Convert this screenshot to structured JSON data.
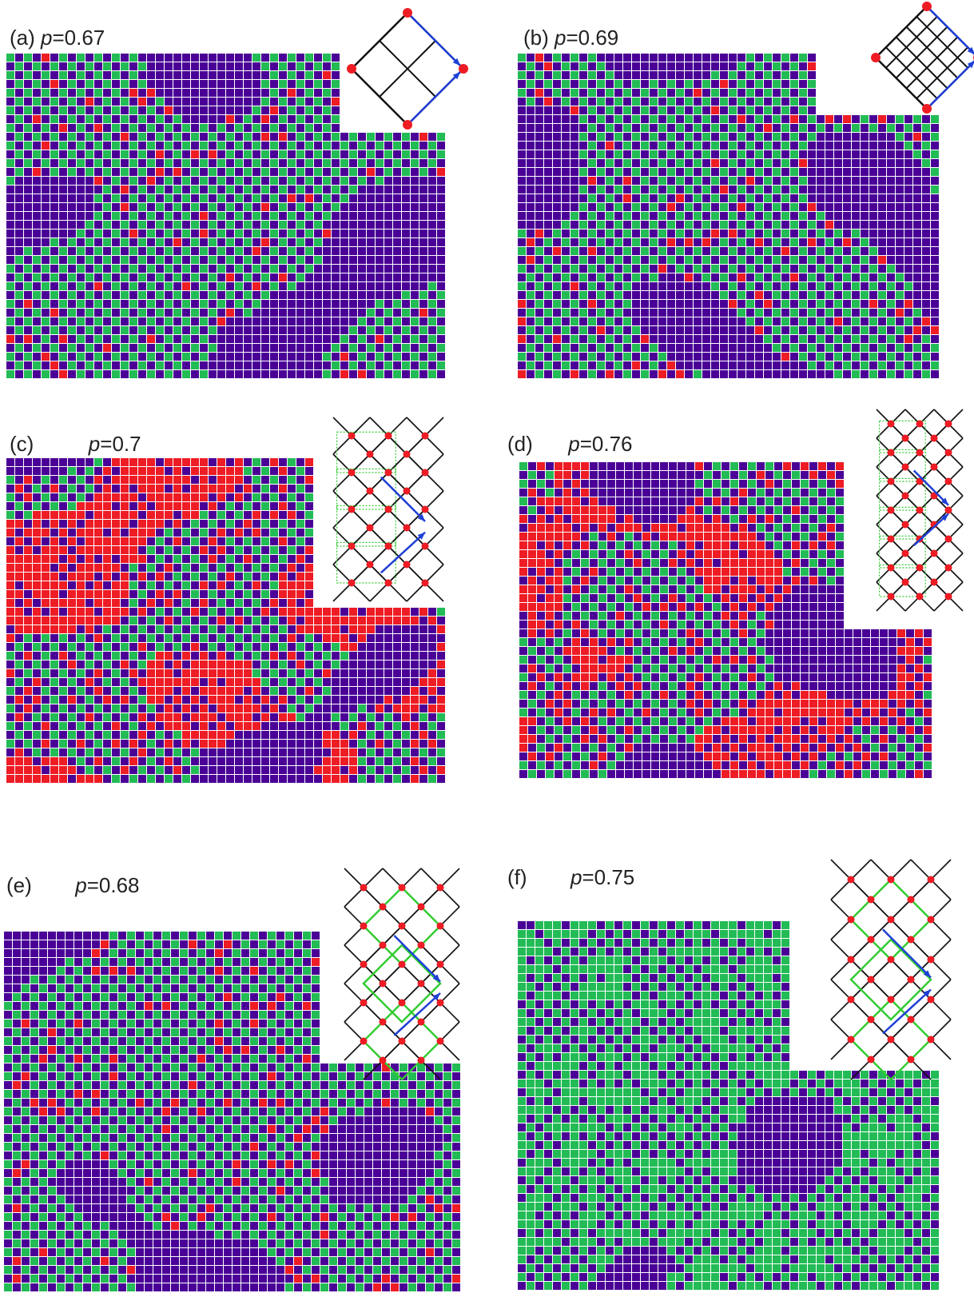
{
  "figure": {
    "colors": {
      "background": "#ffffff",
      "purple": "#4a0096",
      "green": "#22bb55",
      "red": "#ee1c24",
      "grid_line": "#ffffff",
      "schematic_line": "#111111",
      "schematic_highlight": "#33cc33",
      "arrow": "#1f3fd6"
    },
    "panels": [
      {
        "id": "a",
        "letter": "(a)",
        "p_symbol": "p",
        "p_value": "=0.67",
        "inset": "square-2x2",
        "regime": "purple-green"
      },
      {
        "id": "b",
        "letter": "(b)",
        "p_symbol": "p",
        "p_value": "=0.69",
        "inset": "square-4x4",
        "regime": "purple-green"
      },
      {
        "id": "c",
        "letter": "(c)",
        "p_symbol": "p",
        "p_value": "=0.7",
        "inset": "cross-lattice-dotted",
        "regime": "red-rich"
      },
      {
        "id": "d",
        "letter": "(d)",
        "p_symbol": "p",
        "p_value": "=0.76",
        "inset": "tall-cross-lattice-dotted",
        "regime": "red-rich"
      },
      {
        "id": "e",
        "letter": "(e)",
        "p_symbol": "p",
        "p_value": "=0.68",
        "inset": "cross-lattice-green",
        "regime": "purple-green"
      },
      {
        "id": "f",
        "letter": "(f)",
        "p_symbol": "p",
        "p_value": "=0.75",
        "inset": "cross-lattice-green",
        "regime": "green-dots"
      }
    ]
  }
}
